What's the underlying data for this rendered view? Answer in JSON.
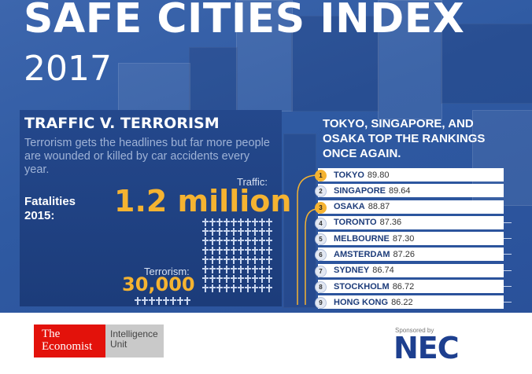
{
  "header": {
    "title": "SAFE CITIES INDEX",
    "year": "2017"
  },
  "traffic_terror": {
    "heading": "TRAFFIC V. TERRORISM",
    "description": "Terrorism gets the headlines but far more people are wounded or killed by car accidents every year.",
    "fatalities_label": "Fatalities 2015:",
    "traffic_label": "Traffic:",
    "traffic_value": "1.2 million",
    "terrorism_label": "Terrorism:",
    "terrorism_value": "30,000"
  },
  "rankings": {
    "heading": "TOKYO, SINGAPORE, AND OSAKA TOP THE RANKINGS ONCE AGAIN.",
    "items": [
      {
        "rank": "1",
        "city": "TOKYO",
        "score": "89.80"
      },
      {
        "rank": "2",
        "city": "SINGAPORE",
        "score": "89.64"
      },
      {
        "rank": "3",
        "city": "OSAKA",
        "score": "88.87"
      },
      {
        "rank": "4",
        "city": "TORONTO",
        "score": "87.36"
      },
      {
        "rank": "5",
        "city": "MELBOURNE",
        "score": "87.30"
      },
      {
        "rank": "6",
        "city": "AMSTERDAM",
        "score": "87.26"
      },
      {
        "rank": "7",
        "city": "SYDNEY",
        "score": "86.74"
      },
      {
        "rank": "8",
        "city": "STOCKHOLM",
        "score": "86.72"
      },
      {
        "rank": "9",
        "city": "HONG KONG",
        "score": "86.22"
      }
    ]
  },
  "footer": {
    "economist_line1": "The",
    "economist_line2": "Economist",
    "intelligence_line1": "Intelligence",
    "intelligence_line2": "Unit",
    "sponsored_by": "Sponsored by",
    "sponsor_name": "NEC"
  },
  "colors": {
    "hero_blue": "#2f5aa2",
    "accent_gold": "#f5b331",
    "economist_red": "#e3120b",
    "nec_blue": "#1d3f8f"
  }
}
